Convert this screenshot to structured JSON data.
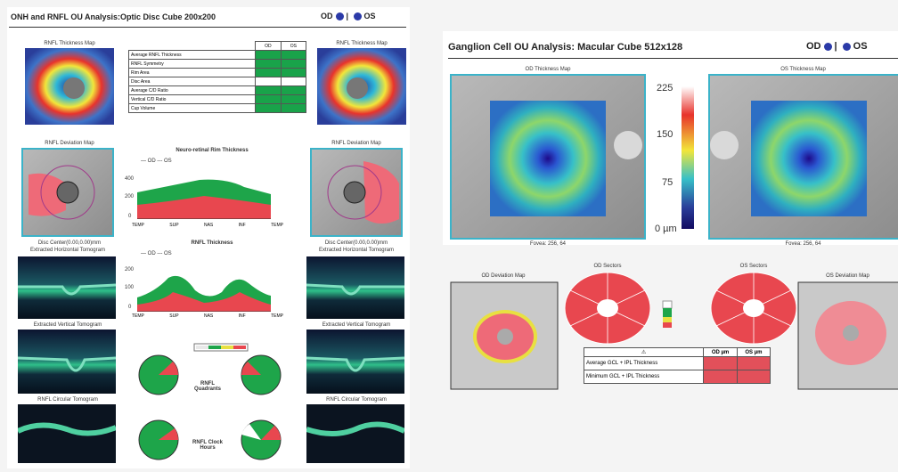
{
  "left": {
    "title": "ONH and RNFL OU Analysis:Optic Disc Cube 200x200",
    "od": "OD",
    "os": "OS",
    "od_thickness_map": "RNFL Thickness Map",
    "os_thickness_map": "RNFL Thickness Map",
    "table": {
      "header": [
        "OD",
        "OS"
      ],
      "rows": [
        "Average RNFL Thickness",
        "RNFL Symmetry",
        "Rim Area",
        "Disc Area",
        "Average C/D Ratio",
        "Vertical C/D Ratio",
        "Cup Volume"
      ]
    },
    "od_deviation_map": "RNFL Deviation Map",
    "os_deviation_map": "RNFL Deviation Map",
    "rim_chart": {
      "title": "Neuro-retinal Rim Thickness",
      "legend": [
        "OD",
        "OS"
      ],
      "yticks": [
        "400",
        "200",
        "0"
      ],
      "xticks": [
        "TEMP",
        "SUP",
        "NAS",
        "INF",
        "TEMP"
      ]
    },
    "rnfl_chart": {
      "title": "RNFL Thickness",
      "legend": [
        "OD",
        "OS"
      ],
      "yticks": [
        "200",
        "100",
        "0"
      ],
      "xticks": [
        "TEMP",
        "SUP",
        "NAS",
        "INF",
        "TEMP"
      ]
    },
    "od_disc_center": "Disc Center(0.00,0.00)mm",
    "os_disc_center": "Disc Center(0.00,0.00)mm",
    "od_horizontal": "Extracted Horizontal Tomogram",
    "os_horizontal": "Extracted Horizontal Tomogram",
    "od_vertical": "Extracted Vertical Tomogram",
    "os_vertical": "Extracted Vertical Tomogram",
    "od_circular": "RNFL Circular Tomogram",
    "os_circular": "RNFL Circular Tomogram",
    "quadrants": "RNFL Quadrants",
    "clock_hours": "RNFL Clock Hours"
  },
  "right": {
    "title": "Ganglion Cell OU Analysis: Macular Cube 512x128",
    "od": "OD",
    "os": "OS",
    "od_thickness_map": "OD Thickness Map",
    "os_thickness_map": "OS Thickness Map",
    "scale": [
      "225",
      "150",
      "75",
      "0 µm"
    ],
    "od_fovea": "Fovea: 256, 64",
    "os_fovea": "Fovea: 256, 64",
    "od_deviation_map": "OD Deviation Map",
    "od_sectors": "OD Sectors",
    "os_sectors": "OS Sectors",
    "os_deviation_map": "OS Deviation Map",
    "table": {
      "header": [
        "OD µm",
        "OS µm"
      ],
      "rows": [
        "Average GCL + IPL Thickness",
        "Minimum GCL + IPL Thickness"
      ]
    }
  }
}
